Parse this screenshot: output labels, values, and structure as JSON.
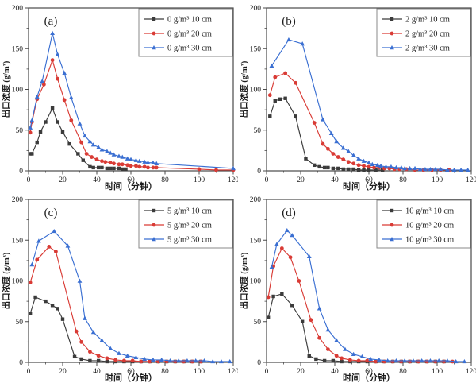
{
  "figure": {
    "xlabel": "时间（分钟）",
    "ylabel": "出口浓度 (g/m³)",
    "xlim": [
      0,
      120
    ],
    "ylim": [
      0,
      200
    ],
    "x_major_ticks": [
      0,
      20,
      40,
      60,
      80,
      100,
      120
    ],
    "x_minor_step": 10,
    "y_major_ticks": [
      0,
      50,
      100,
      150,
      200
    ],
    "y_minor_step": 25,
    "frame_color": "#4a4a4a",
    "text_color": "#1c1c1c",
    "legend_border_color": "#8a8a8a"
  },
  "colors": {
    "black_series": "#3b3b3b",
    "red_series": "#d93b35",
    "blue_series": "#3a6fd2"
  },
  "chart_data": [
    {
      "id": "a",
      "panel_label": "(a)",
      "type": "line",
      "grid": false,
      "legend_position": "top-right",
      "series": [
        {
          "name": "0 g/m³ 10 cm",
          "color": "#3b3b3b",
          "marker": "square",
          "x": [
            1,
            2,
            5,
            7,
            10,
            14,
            17,
            20,
            24,
            29,
            32,
            36,
            38,
            41,
            43,
            46,
            48,
            50,
            53,
            55,
            57
          ],
          "y": [
            21,
            21,
            35,
            48,
            60,
            77,
            60,
            48,
            33,
            21,
            13,
            5,
            4,
            4,
            4,
            3,
            3,
            3,
            3,
            2,
            2
          ]
        },
        {
          "name": "0 g/m³ 20 cm",
          "color": "#d93b35",
          "marker": "circle",
          "x": [
            1,
            2,
            5,
            9,
            14,
            17,
            21,
            25,
            31,
            34,
            37,
            40,
            43,
            45,
            48,
            50,
            53,
            55,
            58,
            60,
            63,
            65,
            68,
            70,
            73,
            75,
            100,
            110,
            120
          ],
          "y": [
            47,
            60,
            88,
            106,
            136,
            113,
            87,
            62,
            35,
            21,
            17,
            14,
            12,
            11,
            10,
            9,
            8,
            8,
            7,
            6,
            6,
            5,
            5,
            4,
            4,
            4,
            2,
            1,
            1
          ]
        },
        {
          "name": "0 g/m³ 30 cm",
          "color": "#3a6fd2",
          "marker": "triangle",
          "x": [
            1,
            2,
            5,
            8,
            14,
            17,
            21,
            25,
            30,
            33,
            36,
            38,
            41,
            43,
            46,
            48,
            50,
            53,
            55,
            58,
            60,
            63,
            65,
            68,
            70,
            73,
            75,
            120
          ],
          "y": [
            53,
            62,
            91,
            110,
            169,
            143,
            120,
            90,
            58,
            43,
            36,
            32,
            29,
            26,
            24,
            22,
            20,
            18,
            17,
            15,
            14,
            13,
            12,
            11,
            10,
            10,
            9,
            3
          ]
        }
      ]
    },
    {
      "id": "b",
      "panel_label": "(b)",
      "type": "line",
      "grid": false,
      "legend_position": "top-right",
      "series": [
        {
          "name": "2 g/m³ 10 cm",
          "color": "#3b3b3b",
          "marker": "square",
          "x": [
            2,
            5,
            8,
            11,
            17,
            23,
            28,
            31,
            34,
            36,
            39,
            42,
            45,
            48,
            51,
            54,
            57,
            60,
            64,
            68
          ],
          "y": [
            67,
            86,
            88,
            89,
            67,
            15,
            7,
            5,
            4,
            4,
            3,
            3,
            2,
            2,
            2,
            1,
            1,
            1,
            1,
            1
          ]
        },
        {
          "name": "2 g/m³ 20 cm",
          "color": "#d93b35",
          "marker": "circle",
          "x": [
            2,
            5,
            11,
            17,
            28,
            33,
            36,
            39,
            42,
            45,
            48,
            51,
            54,
            57,
            60,
            63,
            66,
            69,
            72,
            75,
            78,
            82,
            87,
            92,
            97,
            102,
            107
          ],
          "y": [
            93,
            115,
            120,
            108,
            59,
            33,
            27,
            21,
            17,
            14,
            11,
            9,
            7,
            6,
            5,
            4,
            4,
            3,
            3,
            2,
            2,
            2,
            1,
            1,
            1,
            1,
            1
          ]
        },
        {
          "name": "2 g/m³ 30 cm",
          "color": "#3a6fd2",
          "marker": "triangle",
          "x": [
            3,
            13,
            21,
            33,
            38,
            41,
            45,
            48,
            51,
            54,
            57,
            60,
            62,
            65,
            67,
            70,
            73,
            76,
            79,
            81,
            84,
            87,
            90,
            93,
            96,
            99,
            102,
            106,
            110,
            114,
            118
          ],
          "y": [
            129,
            161,
            156,
            63,
            46,
            36,
            28,
            24,
            19,
            15,
            12,
            10,
            8,
            7,
            6,
            5,
            5,
            4,
            4,
            3,
            3,
            3,
            2,
            2,
            2,
            2,
            2,
            1,
            1,
            1,
            1
          ]
        }
      ]
    },
    {
      "id": "c",
      "panel_label": "(c)",
      "type": "line",
      "grid": false,
      "legend_position": "top-right",
      "series": [
        {
          "name": "5 g/m³ 10 cm",
          "color": "#3b3b3b",
          "marker": "square",
          "x": [
            1,
            4,
            10,
            14,
            17,
            20,
            27,
            31,
            36,
            41,
            46,
            51,
            56,
            61,
            66,
            71,
            76,
            81,
            86,
            91,
            96,
            101
          ],
          "y": [
            60,
            80,
            75,
            70,
            66,
            53,
            7,
            4,
            2,
            2,
            1,
            1,
            1,
            1,
            1,
            1,
            1,
            1,
            1,
            1,
            1,
            1
          ]
        },
        {
          "name": "5 g/m³ 20 cm",
          "color": "#d93b35",
          "marker": "circle",
          "x": [
            1,
            5,
            12,
            16,
            28,
            31,
            36,
            41,
            46,
            51,
            56,
            61,
            66,
            71,
            76,
            81,
            86,
            91,
            96,
            101
          ],
          "y": [
            98,
            126,
            142,
            136,
            38,
            25,
            13,
            8,
            5,
            3,
            2,
            2,
            1,
            1,
            1,
            1,
            1,
            1,
            1,
            1
          ]
        },
        {
          "name": "5 g/m³ 30 cm",
          "color": "#3a6fd2",
          "marker": "triangle",
          "x": [
            2,
            6,
            15,
            23,
            30,
            33,
            38,
            43,
            48,
            53,
            58,
            63,
            68,
            73,
            78,
            83,
            88,
            93,
            98,
            103,
            108,
            113,
            118
          ],
          "y": [
            120,
            149,
            161,
            143,
            100,
            54,
            37,
            27,
            17,
            11,
            8,
            6,
            4,
            3,
            3,
            2,
            2,
            2,
            2,
            2,
            1,
            1,
            1
          ]
        }
      ]
    },
    {
      "id": "d",
      "panel_label": "(d)",
      "type": "line",
      "grid": false,
      "legend_position": "top-right",
      "series": [
        {
          "name": "10 g/m³ 10 cm",
          "color": "#3b3b3b",
          "marker": "square",
          "x": [
            1,
            4,
            9,
            15,
            21,
            25,
            29,
            34,
            39,
            44,
            49,
            54,
            59,
            64,
            69,
            74,
            79,
            84,
            89,
            94,
            99,
            104
          ],
          "y": [
            55,
            81,
            84,
            70,
            50,
            8,
            4,
            2,
            2,
            1,
            1,
            1,
            1,
            1,
            1,
            1,
            1,
            1,
            1,
            1,
            1,
            1
          ]
        },
        {
          "name": "10 g/m³ 20 cm",
          "color": "#d93b35",
          "marker": "circle",
          "x": [
            1,
            4,
            9,
            14,
            19,
            26,
            31,
            36,
            41,
            44,
            49,
            54,
            59,
            64,
            69,
            74,
            79,
            84,
            89,
            94,
            99,
            104,
            109
          ],
          "y": [
            80,
            118,
            140,
            129,
            100,
            52,
            30,
            16,
            8,
            5,
            3,
            2,
            2,
            1,
            1,
            1,
            1,
            1,
            1,
            1,
            1,
            1,
            1
          ]
        },
        {
          "name": "10 g/m³ 30 cm",
          "color": "#3a6fd2",
          "marker": "triangle",
          "x": [
            3,
            6,
            12,
            15,
            25,
            31,
            36,
            41,
            46,
            51,
            56,
            61,
            66,
            71,
            76,
            81,
            86,
            91,
            96,
            101,
            106,
            111,
            116
          ],
          "y": [
            117,
            145,
            162,
            156,
            130,
            66,
            40,
            27,
            16,
            10,
            7,
            4,
            3,
            2,
            2,
            2,
            2,
            2,
            2,
            2,
            2,
            1,
            1
          ]
        }
      ]
    }
  ]
}
